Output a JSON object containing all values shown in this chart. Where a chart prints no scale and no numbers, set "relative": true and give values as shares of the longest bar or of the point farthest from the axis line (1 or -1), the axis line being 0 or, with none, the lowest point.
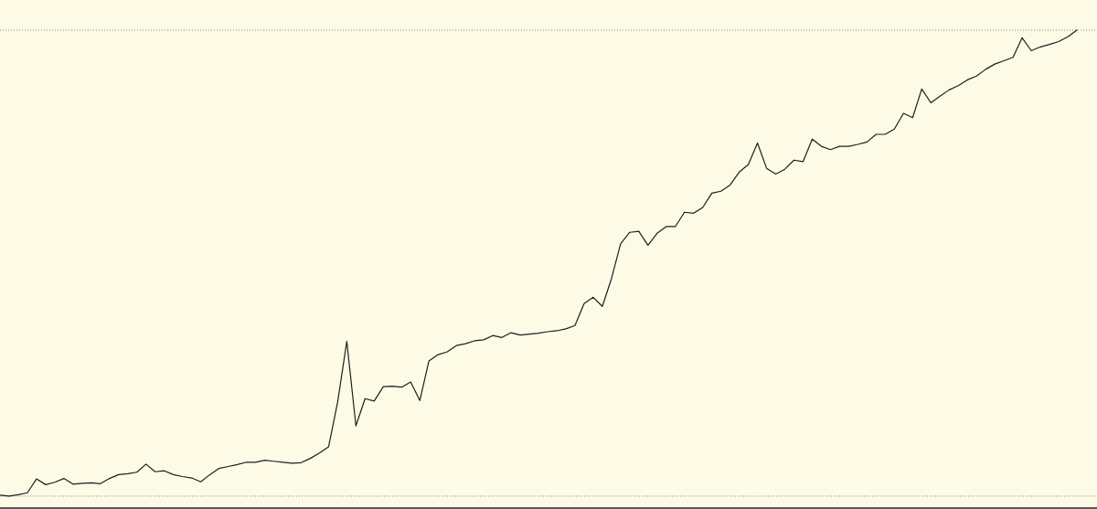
{
  "chart_data": {
    "type": "line",
    "relative": true,
    "categories": [
      null,
      null,
      null,
      null,
      null,
      null,
      null,
      null,
      null,
      null,
      null,
      null,
      null,
      null,
      null,
      null,
      null,
      null,
      null,
      null,
      null,
      null,
      null,
      null,
      null,
      null,
      null,
      null,
      null,
      null,
      null,
      null,
      null,
      null,
      null,
      null,
      null,
      null,
      null,
      null,
      null,
      null,
      null,
      null,
      null,
      null,
      null,
      null,
      null,
      null,
      null,
      null,
      null,
      null,
      null,
      null,
      null,
      null,
      null,
      null,
      null,
      null,
      null,
      null,
      null,
      null,
      null,
      null,
      null,
      null,
      null,
      null,
      null,
      null,
      null,
      null,
      null,
      null,
      null,
      null,
      null,
      null,
      null,
      null,
      null,
      null,
      null,
      null,
      null,
      null,
      null,
      null,
      null,
      null,
      null,
      null,
      null,
      null,
      null,
      null,
      null,
      null,
      null,
      null,
      null,
      null,
      null,
      null,
      null,
      null,
      null,
      null,
      null,
      null,
      null,
      null,
      null,
      null,
      null
    ],
    "series": [
      {
        "color": "#1e1e1e",
        "values": [
          0.027,
          0.025,
          0.028,
          0.032,
          0.061,
          0.049,
          0.054,
          0.062,
          0.05,
          0.052,
          0.053,
          0.051,
          0.062,
          0.07,
          0.072,
          0.075,
          0.092,
          0.076,
          0.078,
          0.07,
          0.066,
          0.063,
          0.055,
          0.07,
          0.083,
          0.087,
          0.091,
          0.096,
          0.096,
          0.1,
          0.098,
          0.096,
          0.094,
          0.095,
          0.104,
          0.115,
          0.128,
          0.222,
          0.349,
          0.172,
          0.229,
          0.224,
          0.254,
          0.255,
          0.253,
          0.264,
          0.225,
          0.308,
          0.321,
          0.327,
          0.34,
          0.344,
          0.35,
          0.352,
          0.361,
          0.357,
          0.367,
          0.362,
          0.364,
          0.366,
          0.369,
          0.371,
          0.375,
          0.382,
          0.428,
          0.441,
          0.422,
          0.48,
          0.553,
          0.577,
          0.579,
          0.55,
          0.575,
          0.589,
          0.589,
          0.619,
          0.617,
          0.629,
          0.659,
          0.663,
          0.676,
          0.703,
          0.719,
          0.764,
          0.711,
          0.699,
          0.709,
          0.728,
          0.725,
          0.772,
          0.757,
          0.75,
          0.757,
          0.757,
          0.761,
          0.766,
          0.782,
          0.782,
          0.793,
          0.826,
          0.817,
          0.877,
          0.848,
          0.862,
          0.875,
          0.884,
          0.896,
          0.904,
          0.918,
          0.929,
          0.936,
          0.943,
          0.984,
          0.957,
          0.965,
          0.97,
          0.976,
          0.986,
          1.0
        ]
      }
    ],
    "ref_lines": [
      {
        "axis": "y",
        "value": 1.0,
        "color": "#8a8a80",
        "line_style": "dotted"
      },
      {
        "axis": "y",
        "value": 0.025,
        "color": "#8a8a80",
        "line_style": "dotted"
      }
    ]
  }
}
